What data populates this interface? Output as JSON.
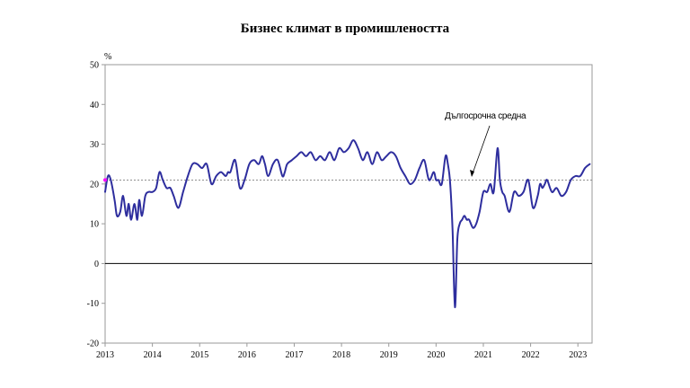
{
  "chart_data": {
    "type": "line",
    "title": "Бизнес климат в промишлеността",
    "ylabel": "%",
    "xlabel": "",
    "ylim": [
      -20,
      50
    ],
    "xlim": [
      2013.0,
      2023.3
    ],
    "y_ticks": [
      "50",
      "40",
      "30",
      "20",
      "10",
      "0",
      "-10",
      "-20"
    ],
    "y_tick_values": [
      50,
      40,
      30,
      20,
      10,
      0,
      -10,
      -20
    ],
    "x_ticks": [
      "2013",
      "2014",
      "2015",
      "2016",
      "2017",
      "2018",
      "2019",
      "2020",
      "2021",
      "2022",
      "2023"
    ],
    "x_tick_values": [
      2013,
      2014,
      2015,
      2016,
      2017,
      2018,
      2019,
      2020,
      2021,
      2022,
      2023
    ],
    "grid": false,
    "long_term_average": {
      "label": "Дългосрочна средна",
      "value": 21
    },
    "colors": {
      "series": "#2e2e9e",
      "zero_line": "#000000",
      "average_line": "#808080",
      "marker": "#ff00ff"
    },
    "series": [
      {
        "x": [
          2013.0,
          2013.06,
          2013.12,
          2013.2,
          2013.25,
          2013.32,
          2013.38,
          2013.45,
          2013.5,
          2013.55,
          2013.62,
          2013.68,
          2013.72,
          2013.78,
          2013.85,
          2013.92,
          2014.0,
          2014.08,
          2014.15,
          2014.22,
          2014.3,
          2014.38,
          2014.45,
          2014.55,
          2014.65,
          2014.75,
          2014.85,
          2014.95,
          2015.05,
          2015.15,
          2015.25,
          2015.35,
          2015.45,
          2015.55,
          2015.6,
          2015.65,
          2015.75,
          2015.85,
          2015.95,
          2016.05,
          2016.15,
          2016.25,
          2016.32,
          2016.38,
          2016.45,
          2016.55,
          2016.65,
          2016.75,
          2016.8,
          2016.85,
          2016.95,
          2017.05,
          2017.15,
          2017.25,
          2017.35,
          2017.45,
          2017.55,
          2017.65,
          2017.75,
          2017.85,
          2017.95,
          2018.05,
          2018.15,
          2018.25,
          2018.35,
          2018.45,
          2018.55,
          2018.65,
          2018.75,
          2018.85,
          2018.95,
          2019.05,
          2019.15,
          2019.25,
          2019.35,
          2019.45,
          2019.55,
          2019.65,
          2019.75,
          2019.85,
          2019.95,
          2020.0,
          2020.05,
          2020.12,
          2020.2,
          2020.25,
          2020.3,
          2020.35,
          2020.4,
          2020.45,
          2020.5,
          2020.55,
          2020.6,
          2020.65,
          2020.7,
          2020.78,
          2020.85,
          2020.92,
          2021.0,
          2021.08,
          2021.15,
          2021.22,
          2021.3,
          2021.35,
          2021.4,
          2021.45,
          2021.55,
          2021.65,
          2021.75,
          2021.85,
          2021.95,
          2022.05,
          2022.15,
          2022.2,
          2022.25,
          2022.3,
          2022.35,
          2022.45,
          2022.55,
          2022.65,
          2022.75,
          2022.85,
          2022.95,
          2023.05,
          2023.15,
          2023.25
        ],
        "values": [
          18,
          22,
          21,
          16,
          12,
          13,
          17,
          12,
          15,
          11,
          15,
          11,
          16,
          12,
          17,
          18,
          18,
          19,
          23,
          21,
          19,
          19,
          17,
          14,
          18,
          22,
          25,
          25,
          24,
          25,
          20,
          22,
          23,
          22,
          23,
          23,
          26,
          19,
          21,
          25,
          26,
          25,
          27,
          25,
          22,
          25,
          26,
          22,
          23,
          25,
          26,
          27,
          28,
          27,
          28,
          26,
          27,
          26,
          28,
          26,
          29,
          28,
          29,
          31,
          29,
          26,
          28,
          25,
          28,
          26,
          27,
          28,
          27,
          24,
          22,
          20,
          21,
          24,
          26,
          21,
          23,
          21,
          21,
          20,
          27,
          25,
          20,
          8,
          -11,
          6,
          10,
          11,
          12,
          11,
          11,
          9,
          10,
          13,
          18,
          18,
          20,
          18,
          29,
          21,
          18,
          17,
          13,
          18,
          17,
          18,
          21,
          14,
          17,
          20,
          19,
          20,
          21,
          18,
          19,
          17,
          18,
          21,
          22,
          22,
          24,
          25
        ]
      }
    ]
  }
}
